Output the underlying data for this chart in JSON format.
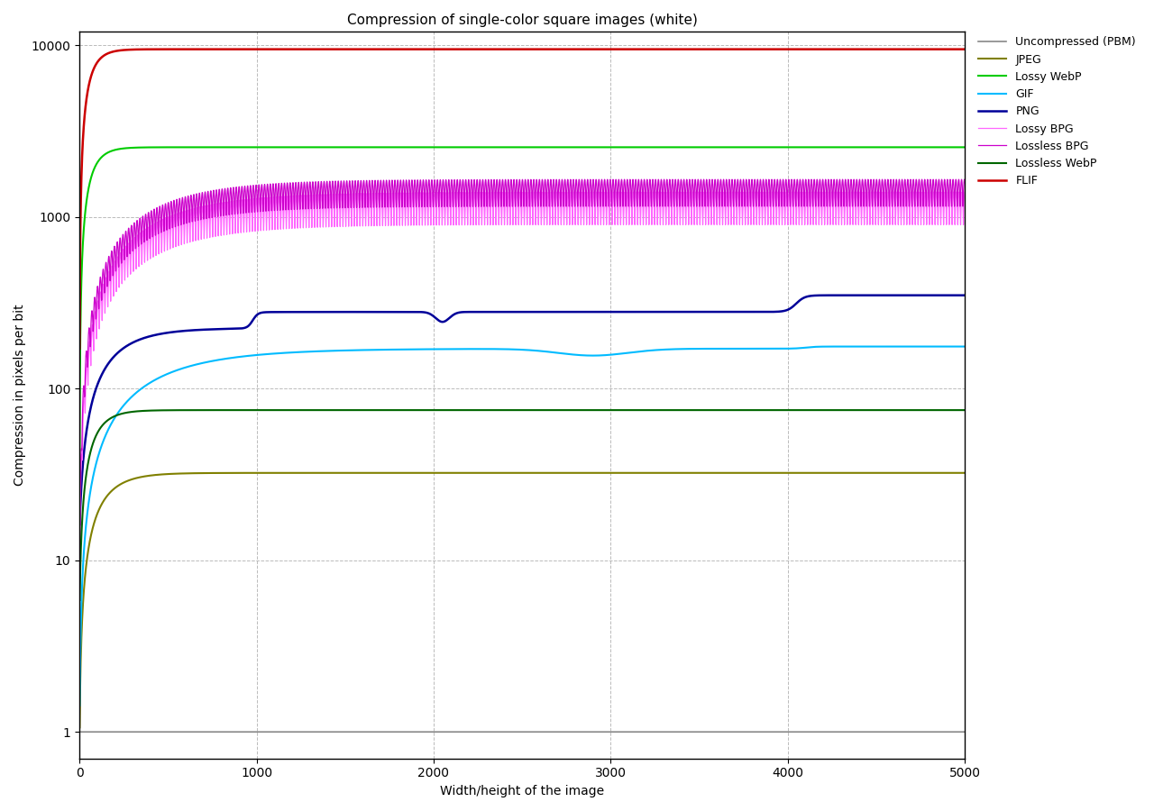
{
  "title": "Compression of single-color square images (white)",
  "xlabel": "Width/height of the image",
  "ylabel": "Compression in pixels per bit",
  "xlim": [
    0,
    5000
  ],
  "ylim_log": [
    0.7,
    12000
  ],
  "background_color": "#ffffff",
  "grid_color": "#aaaaaa",
  "series": [
    {
      "name": "Uncompressed (PBM)",
      "color": "#888888",
      "linewidth": 1.2
    },
    {
      "name": "JPEG",
      "color": "#808000",
      "linewidth": 1.5
    },
    {
      "name": "Lossy WebP",
      "color": "#00cc00",
      "linewidth": 1.5
    },
    {
      "name": "GIF",
      "color": "#00bbff",
      "linewidth": 1.5
    },
    {
      "name": "PNG",
      "color": "#000099",
      "linewidth": 1.8
    },
    {
      "name": "Lossy BPG",
      "color": "#ff66ff",
      "linewidth": 0.9
    },
    {
      "name": "Lossless BPG",
      "color": "#cc00cc",
      "linewidth": 0.9
    },
    {
      "name": "Lossless WebP",
      "color": "#006600",
      "linewidth": 1.5
    },
    {
      "name": "FLIF",
      "color": "#cc0000",
      "linewidth": 1.8
    }
  ],
  "legend_fontsize": 9,
  "title_fontsize": 11,
  "axis_fontsize": 10
}
